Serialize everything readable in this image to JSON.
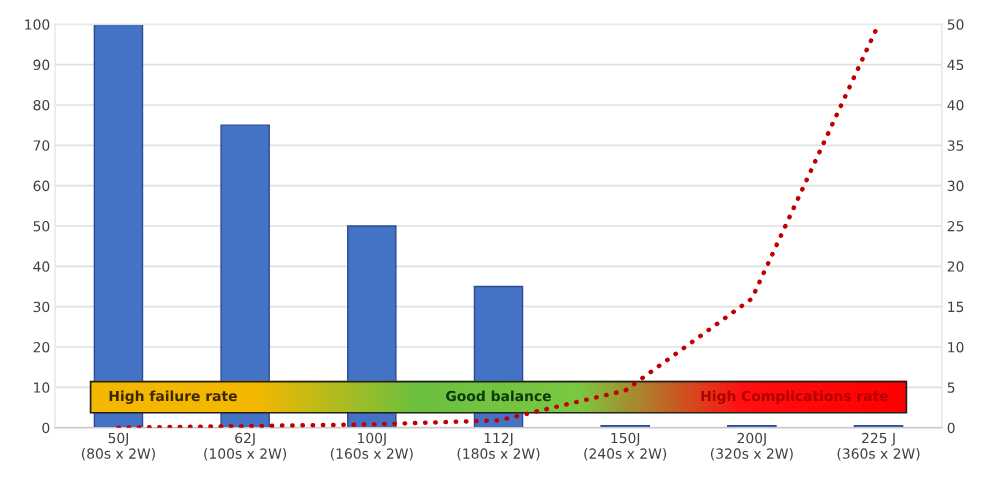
{
  "chart_data": {
    "type": "bar",
    "categories": [
      "50J\n(80s x 2W)",
      "62J\n(100s x 2W)",
      "100J\n(160s x 2W)",
      "112J\n(180s x 2W)",
      "150J\n(240s x 2W)",
      "200J\n(320s x 2W)",
      "225 J\n(360s x 2W)"
    ],
    "series": [
      {
        "color": "#4472c4",
        "values": [
          100,
          75,
          50,
          35,
          0.5,
          0.5,
          0.5
        ]
      },
      {
        "type": "line",
        "axis": "y2",
        "color": "#c00000",
        "line_style": "dotted",
        "values": [
          0,
          0.2,
          0.4,
          0.9,
          4.6,
          16,
          50
        ]
      }
    ],
    "ylim": [
      0,
      100
    ],
    "yticks": [
      0,
      10,
      20,
      30,
      40,
      50,
      60,
      70,
      80,
      90,
      100
    ],
    "y2lim": [
      0,
      50
    ],
    "y2ticks": [
      0,
      5,
      10,
      15,
      20,
      25,
      30,
      35,
      40,
      45,
      50
    ],
    "grid": "y",
    "annotations": [
      "High failure rate",
      "Good balance",
      "High Complications rate"
    ]
  }
}
